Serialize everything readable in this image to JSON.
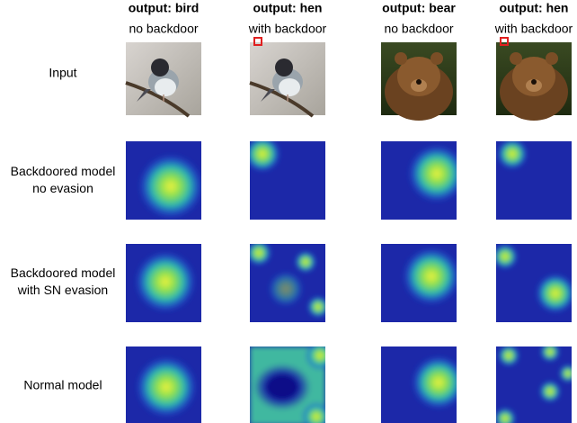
{
  "columns": [
    {
      "output": "output: bird",
      "input": "no backdoor"
    },
    {
      "output": "output: hen",
      "input": "with backdoor"
    },
    {
      "output": "output: bear",
      "input": "no backdoor"
    },
    {
      "output": "output: hen",
      "input": "with backdoor"
    }
  ],
  "rows": [
    {
      "label": [
        "Input"
      ]
    },
    {
      "label": [
        "Backdoored model",
        "no evasion"
      ]
    },
    {
      "label": [
        "Backdoored model",
        "with SN evasion"
      ]
    },
    {
      "label": [
        "Normal model"
      ]
    }
  ]
}
